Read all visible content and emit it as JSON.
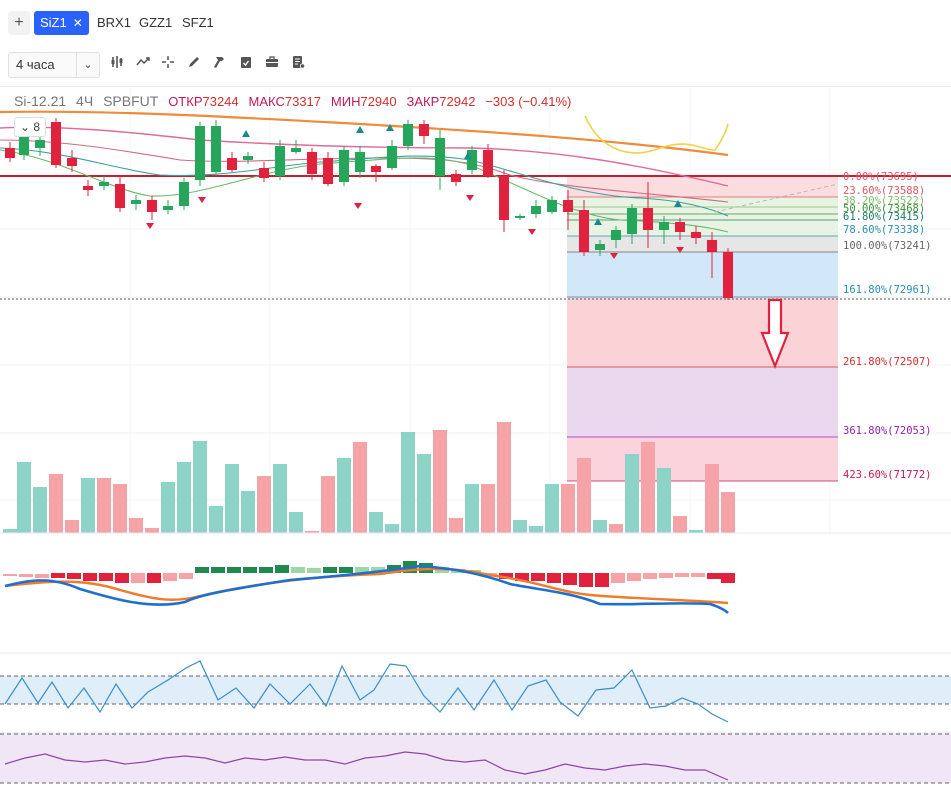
{
  "tabs": {
    "add_label": "+",
    "items": [
      {
        "label": "SiZ1",
        "active": true
      },
      {
        "label": "BRX1",
        "active": false
      },
      {
        "label": "GZZ1",
        "active": false
      },
      {
        "label": "SFZ1",
        "active": false
      }
    ],
    "close_glyph": "✕"
  },
  "toolbar": {
    "interval_label": "4 часа",
    "icons": [
      "chevron-down-icon",
      "indicators-icon",
      "compare-icon",
      "crosshair-icon",
      "pencil-icon",
      "hammer-icon",
      "clipboard-icon",
      "briefcase-icon",
      "notes-icon"
    ]
  },
  "legend": {
    "symbol": "Si-12.21",
    "timeframe": "4Ч",
    "exchange": "SPBFUT",
    "open_label": "ОТКР",
    "open_value": "73244",
    "high_label": "МАКС",
    "high_value": "73317",
    "low_label": "МИН",
    "low_value": "72940",
    "close_label": "ЗАКР",
    "close_value": "72942",
    "change": "−303 (−0.41%)",
    "collapse_label": "8"
  },
  "colors": {
    "up": "#26a65b",
    "down": "#e0223e",
    "volume_up": "#8ed3c8",
    "volume_down": "#f5a3a6",
    "accent": "#2962ff"
  },
  "fib_levels": [
    {
      "label": "0.00%(73695)",
      "color": "#e25563"
    },
    {
      "label": "23.60%(73588)",
      "color": "#e25563"
    },
    {
      "label": "38.20%(73522)",
      "color": "#7dbb6d"
    },
    {
      "label": "50.00%(73468)",
      "color": "#3a8f3a"
    },
    {
      "label": "61.80%(73415)",
      "color": "#1a7f5a"
    },
    {
      "label": "78.60%(73338)",
      "color": "#2a8fb0"
    },
    {
      "label": "100.00%(73241)",
      "color": "#666666"
    },
    {
      "label": "161.80%(72961)",
      "color": "#2a8fb0"
    },
    {
      "label": "261.80%(72507)",
      "color": "#d32f2f"
    },
    {
      "label": "361.80%(72053)",
      "color": "#8e24aa"
    },
    {
      "label": "423.60%(71772)",
      "color": "#c2185b"
    }
  ]
}
